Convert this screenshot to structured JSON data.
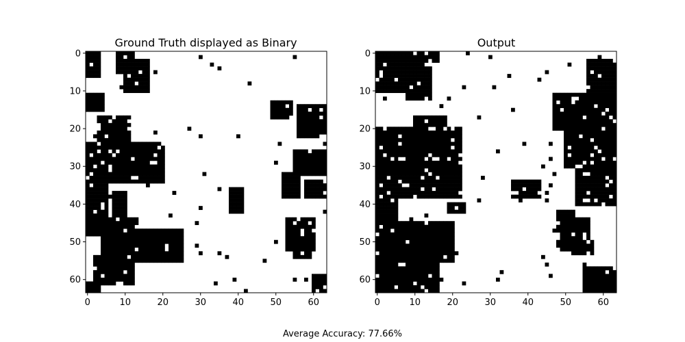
{
  "figure": {
    "footer_label": "Average Accuracy:",
    "footer_value": "77.66%",
    "colors": {
      "one": "#000000",
      "zero": "#ffffff",
      "axis": "#000000"
    }
  },
  "chart_data": [
    {
      "type": "heatmap",
      "title": "Ground Truth displayed as Binary",
      "xlabel": "",
      "ylabel": "",
      "grid_size": [
        64,
        64
      ],
      "xlim": [
        -0.5,
        63.5
      ],
      "ylim": [
        63.5,
        -0.5
      ],
      "xticks": [
        0,
        10,
        20,
        30,
        40,
        50,
        60
      ],
      "yticks": [
        0,
        10,
        20,
        30,
        40,
        50,
        60
      ],
      "colormap": "binary",
      "grid": false,
      "description_of_values": "binary 0/1 image, black = 1, white = 0; dominant black regions",
      "black_regions": [
        {
          "rows": [
            0,
            6
          ],
          "cols": [
            0,
            3
          ]
        },
        {
          "rows": [
            0,
            5
          ],
          "cols": [
            8,
            12
          ]
        },
        {
          "rows": [
            2,
            10
          ],
          "cols": [
            10,
            16
          ]
        },
        {
          "rows": [
            11,
            15
          ],
          "cols": [
            0,
            4
          ]
        },
        {
          "rows": [
            13,
            17
          ],
          "cols": [
            49,
            54
          ]
        },
        {
          "rows": [
            14,
            22
          ],
          "cols": [
            56,
            63
          ]
        },
        {
          "rows": [
            17,
            25
          ],
          "cols": [
            3,
            11
          ]
        },
        {
          "rows": [
            24,
            34
          ],
          "cols": [
            0,
            20
          ]
        },
        {
          "rows": [
            26,
            32
          ],
          "cols": [
            55,
            63
          ]
        },
        {
          "rows": [
            32,
            38
          ],
          "cols": [
            52,
            56
          ]
        },
        {
          "rows": [
            34,
            38
          ],
          "cols": [
            58,
            63
          ]
        },
        {
          "rows": [
            36,
            42
          ],
          "cols": [
            38,
            41
          ]
        },
        {
          "rows": [
            35,
            48
          ],
          "cols": [
            0,
            5
          ]
        },
        {
          "rows": [
            37,
            45
          ],
          "cols": [
            7,
            10
          ]
        },
        {
          "rows": [
            44,
            49
          ],
          "cols": [
            5,
            13
          ]
        },
        {
          "rows": [
            44,
            52
          ],
          "cols": [
            53,
            60
          ]
        },
        {
          "rows": [
            47,
            55
          ],
          "cols": [
            4,
            25
          ]
        },
        {
          "rows": [
            50,
            54
          ],
          "cols": [
            55,
            59
          ]
        },
        {
          "rows": [
            54,
            61
          ],
          "cols": [
            2,
            12
          ]
        },
        {
          "rows": [
            59,
            63
          ],
          "cols": [
            60,
            63
          ]
        },
        {
          "rows": [
            61,
            63
          ],
          "cols": [
            0,
            3
          ]
        }
      ]
    },
    {
      "type": "heatmap",
      "title": "Output",
      "xlabel": "",
      "ylabel": "",
      "grid_size": [
        64,
        64
      ],
      "xlim": [
        -0.5,
        63.5
      ],
      "ylim": [
        63.5,
        -0.5
      ],
      "xticks": [
        0,
        10,
        20,
        30,
        40,
        50,
        60
      ],
      "yticks": [
        0,
        10,
        20,
        30,
        40,
        50,
        60
      ],
      "colormap": "binary",
      "grid": false,
      "description_of_values": "binary 0/1 image, black = 1, white = 0; dominant black regions",
      "black_regions": [
        {
          "rows": [
            0,
            10
          ],
          "cols": [
            0,
            13
          ]
        },
        {
          "rows": [
            4,
            12
          ],
          "cols": [
            8,
            14
          ]
        },
        {
          "rows": [
            0,
            2
          ],
          "cols": [
            10,
            16
          ]
        },
        {
          "rows": [
            2,
            12
          ],
          "cols": [
            56,
            63
          ]
        },
        {
          "rows": [
            11,
            20
          ],
          "cols": [
            47,
            63
          ]
        },
        {
          "rows": [
            17,
            22
          ],
          "cols": [
            10,
            18
          ]
        },
        {
          "rows": [
            20,
            38
          ],
          "cols": [
            0,
            22
          ]
        },
        {
          "rows": [
            21,
            30
          ],
          "cols": [
            50,
            63
          ]
        },
        {
          "rows": [
            30,
            40
          ],
          "cols": [
            53,
            63
          ]
        },
        {
          "rows": [
            34,
            38
          ],
          "cols": [
            36,
            43
          ]
        },
        {
          "rows": [
            38,
            64
          ],
          "cols": [
            0,
            5
          ]
        },
        {
          "rows": [
            45,
            55
          ],
          "cols": [
            4,
            20
          ]
        },
        {
          "rows": [
            44,
            50
          ],
          "cols": [
            50,
            56
          ]
        },
        {
          "rows": [
            42,
            52
          ],
          "cols": [
            48,
            52
          ]
        },
        {
          "rows": [
            50,
            53
          ],
          "cols": [
            53,
            57
          ]
        },
        {
          "rows": [
            55,
            64
          ],
          "cols": [
            0,
            16
          ]
        },
        {
          "rows": [
            57,
            64
          ],
          "cols": [
            55,
            63
          ]
        },
        {
          "rows": [
            40,
            42
          ],
          "cols": [
            19,
            23
          ]
        }
      ]
    }
  ]
}
